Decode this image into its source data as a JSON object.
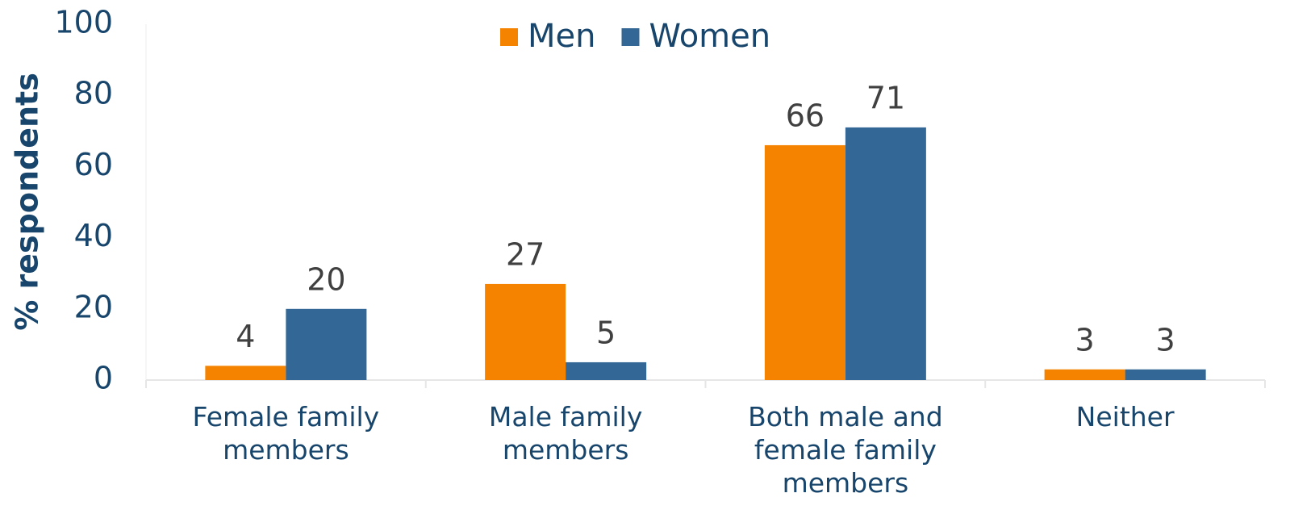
{
  "chart_data": {
    "type": "bar",
    "y_label": "% respondents",
    "categories": [
      "Female family members",
      "Male family members",
      "Both male and female family members",
      "Neither"
    ],
    "series": [
      {
        "name": "Men",
        "color": "#f58300",
        "values": [
          4,
          27,
          66,
          3
        ]
      },
      {
        "name": "Women",
        "color": "#336795",
        "values": [
          20,
          5,
          71,
          3
        ]
      }
    ],
    "ylim": [
      0,
      100
    ],
    "yticks": [
      0,
      20,
      40,
      60,
      80,
      100
    ],
    "grid": false,
    "legend": "top"
  }
}
